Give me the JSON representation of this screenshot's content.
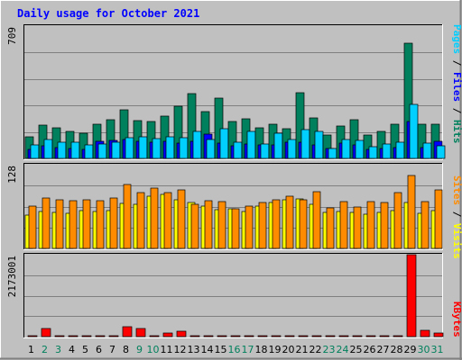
{
  "chart_data": {
    "type": "bar",
    "title": "Daily usage for October 2021",
    "days": [
      "1",
      "2",
      "3",
      "4",
      "5",
      "6",
      "7",
      "8",
      "9",
      "10",
      "11",
      "12",
      "13",
      "14",
      "15",
      "16",
      "17",
      "18",
      "19",
      "20",
      "21",
      "22",
      "23",
      "24",
      "25",
      "26",
      "27",
      "28",
      "29",
      "30",
      "31"
    ],
    "weekend_days": [
      "2",
      "3",
      "9",
      "10",
      "16",
      "17",
      "23",
      "24",
      "30",
      "31"
    ],
    "panels": [
      {
        "id": "hits",
        "ymax_label": "709",
        "ymax": 709,
        "series": [
          {
            "name": "Hits",
            "color": "#00805c",
            "values": [
              118,
              180,
              165,
              145,
              133,
              183,
              207,
              260,
              204,
              196,
              229,
              278,
              347,
              250,
              322,
              196,
              213,
              164,
              183,
              157,
              353,
              215,
              124,
              174,
              209,
              125,
              145,
              181,
              615,
              181,
              184
            ]
          },
          {
            "name": "Files",
            "color": "#0000ff",
            "values": [
              47,
              68,
              57,
              55,
              48,
              90,
              96,
              101,
              93,
              86,
              90,
              80,
              94,
              132,
              84,
              69,
              76,
              72,
              72,
              86,
              86,
              73,
              51,
              80,
              73,
              50,
              55,
              59,
              200,
              58,
              90
            ]
          },
          {
            "name": "Pages",
            "color": "#00cfff",
            "values": [
              70,
              102,
              86,
              87,
              74,
              77,
              88,
              111,
              115,
              108,
              114,
              110,
              145,
              100,
              160,
              85,
              145,
              78,
              134,
              99,
              155,
              145,
              55,
              100,
              95,
              62,
              79,
              87,
              290,
              80,
              68
            ]
          }
        ]
      },
      {
        "id": "visits",
        "ymax_label": "128",
        "ymax": 128,
        "series": [
          {
            "name": "Visits",
            "color": "#ffff00",
            "values": [
              51,
              57,
              55,
              54,
              58,
              57,
              58,
              69,
              68,
              80,
              82,
              74,
              70,
              65,
              59,
              60,
              57,
              65,
              70,
              74,
              76,
              68,
              55,
              56,
              55,
              52,
              55,
              58,
              70,
              53,
              58
            ]
          },
          {
            "name": "Sites",
            "color": "#ff8c00",
            "values": [
              65,
              77,
              74,
              73,
              75,
              73,
              77,
              98,
              85,
              92,
              85,
              90,
              67,
              73,
              71,
              60,
              65,
              70,
              75,
              80,
              74,
              87,
              62,
              71,
              63,
              72,
              70,
              85,
              112,
              71,
              90
            ]
          }
        ]
      },
      {
        "id": "kbytes",
        "ymax_label": "2173001",
        "ymax": 2173001,
        "series": [
          {
            "name": "KBytes",
            "color": "#ff0000",
            "values": [
              0,
              216000,
              0,
              0,
              0,
              0,
              0,
              263000,
              216000,
              0,
              102000,
              140000,
              0,
              0,
              0,
              0,
              0,
              0,
              0,
              0,
              0,
              0,
              0,
              22000,
              0,
              0,
              0,
              0,
              2173001,
              178000,
              102000
            ]
          }
        ]
      }
    ],
    "legend_right": {
      "top": [
        {
          "text": "Pages",
          "color": "#00cfff"
        },
        {
          "text": " / ",
          "color": "#000000"
        },
        {
          "text": "Files",
          "color": "#0000ff"
        },
        {
          "text": " / ",
          "color": "#000000"
        },
        {
          "text": "Hits",
          "color": "#00805c"
        }
      ],
      "middle": [
        {
          "text": "Sites",
          "color": "#ff8c00"
        },
        {
          "text": " / ",
          "color": "#000000"
        },
        {
          "text": "Visits",
          "color": "#ffff00"
        }
      ],
      "bottom": [
        {
          "text": "KBytes",
          "color": "#ff0000"
        }
      ]
    },
    "colors": {
      "background": "#c0c0c0",
      "plot_background": "#c0c0c0",
      "title": "#0000ff",
      "weekday_label": "#000000",
      "weekend_label": "#00805c",
      "grid": "#808080"
    },
    "grid": true
  }
}
